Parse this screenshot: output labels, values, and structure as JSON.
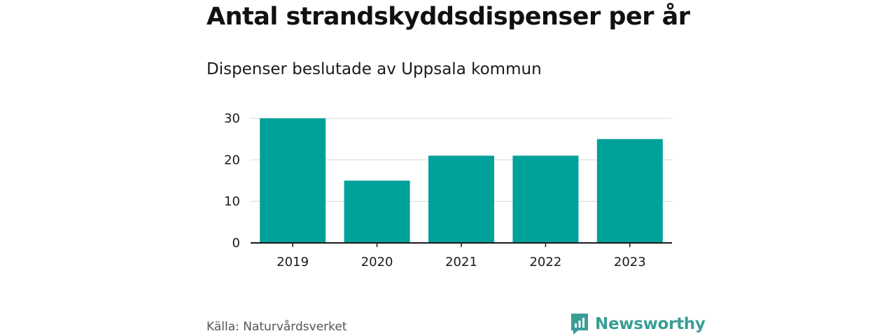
{
  "chart_data": {
    "type": "bar",
    "title": "Antal strandskyddsdispenser per år",
    "subtitle": "Dispenser beslutade av Uppsala kommun",
    "categories": [
      "2019",
      "2020",
      "2021",
      "2022",
      "2023"
    ],
    "values": [
      30,
      15,
      21,
      21,
      25
    ],
    "ylim": [
      0,
      30
    ],
    "yticks": [
      0,
      10,
      20,
      30
    ],
    "xlabel": "",
    "ylabel": "",
    "grid": true,
    "bar_color": "#00a19a"
  },
  "footer": {
    "source": "Källa: Naturvårdsverket",
    "brand": "Newsworthy"
  },
  "colors": {
    "brand": "#3a9e96",
    "grid": "#d9d9d9",
    "axis": "#1a1a1a"
  }
}
